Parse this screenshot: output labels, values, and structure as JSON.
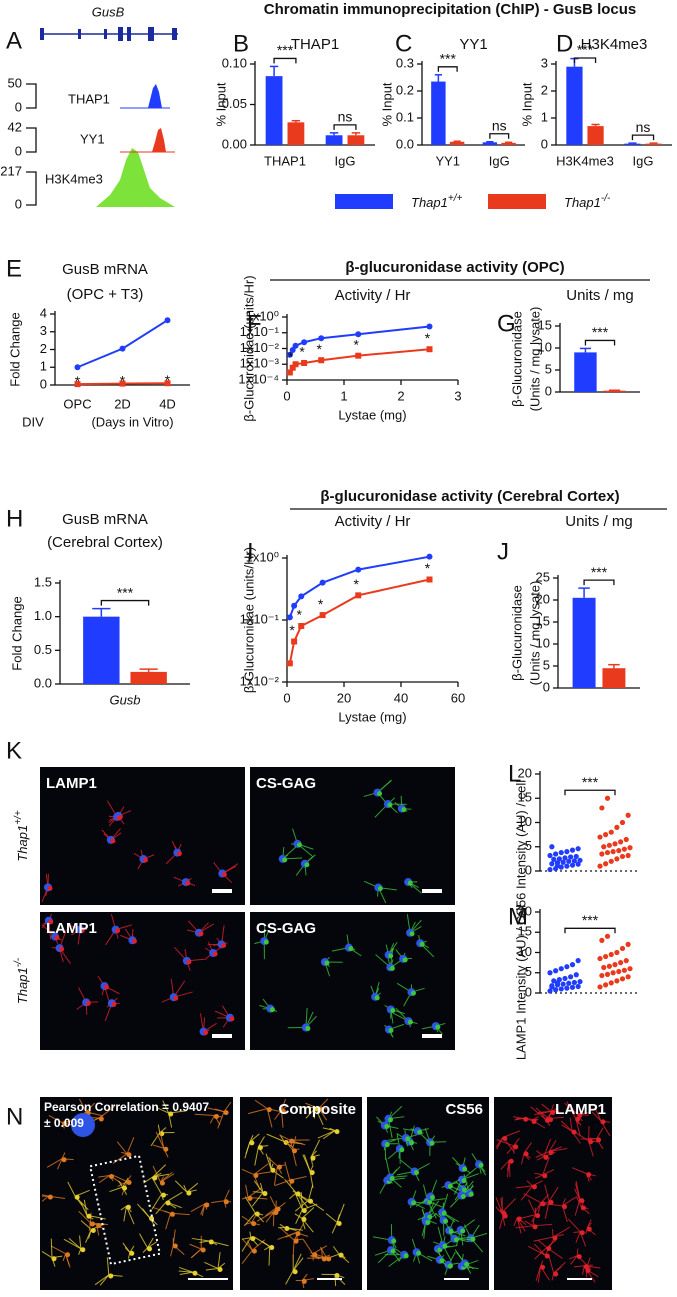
{
  "panel_letters": [
    "A",
    "B",
    "C",
    "D",
    "E",
    "F",
    "G",
    "H",
    "I",
    "J",
    "K",
    "L",
    "M",
    "N"
  ],
  "headers": [
    "Chromatin immunoprecipitation (ChIP) - GusB locus",
    "β-glucuronidase activity (OPC)",
    "β-glucuronidase activity (Cerebral Cortex)"
  ],
  "legend": [
    {
      "name": "Thap1",
      "superscript": "+/+",
      "color": "#1f3cff"
    },
    {
      "name": "Thap1",
      "superscript": "-/-",
      "color": "#ea3a1d"
    }
  ],
  "panel_a": {
    "gene": "GusB",
    "tracks": [
      {
        "name": "THAP1",
        "max": 50,
        "min": 0,
        "color": "#1f3cff"
      },
      {
        "name": "YY1",
        "max": 42,
        "min": 0,
        "color": "#ea3a1d"
      },
      {
        "name": "H3K4me3",
        "max": 217,
        "min": 0,
        "color": "#7de33a"
      }
    ]
  },
  "panel_k": {
    "columns": [
      "LAMP1",
      "CS-GAG"
    ],
    "rows": [
      {
        "name": "Thap1",
        "superscript": "+/+"
      },
      {
        "name": "Thap1",
        "superscript": "-/-"
      }
    ]
  },
  "panel_n": {
    "labels": [
      "Pearson Correlation = 0.9407",
      "± 0.009"
    ],
    "images": [
      "Composite",
      "CS56",
      "LAMP1"
    ]
  },
  "chart_data": [
    {
      "type": "bar",
      "title": "THAP1",
      "ylabel": "% Input",
      "categories": [
        "THAP1",
        "IgG"
      ],
      "series": [
        {
          "color": "#1f3cff",
          "values": [
            0.085,
            0.012
          ],
          "errors": [
            0.012,
            0.003
          ]
        },
        {
          "color": "#ea3a1d",
          "values": [
            0.028,
            0.012
          ],
          "errors": [
            0.002,
            0.003
          ]
        }
      ],
      "ylim": [
        0,
        0.1
      ],
      "yticks": [
        {
          "value": 0,
          "label": "0.00"
        },
        {
          "value": 0.05,
          "label": "0.05"
        },
        {
          "value": 0.1,
          "label": "0.10"
        }
      ],
      "annotations": [
        "***",
        "ns"
      ]
    },
    {
      "type": "bar",
      "title": "YY1",
      "ylabel": "% Input",
      "categories": [
        "YY1",
        "IgG"
      ],
      "series": [
        {
          "color": "#1f3cff",
          "values": [
            0.235,
            0.01
          ],
          "errors": [
            0.025,
            0.002
          ]
        },
        {
          "color": "#ea3a1d",
          "values": [
            0.012,
            0.008
          ],
          "errors": [
            0.002,
            0.002
          ]
        }
      ],
      "ylim": [
        0,
        0.3
      ],
      "yticks": [
        {
          "value": 0,
          "label": "0.0"
        },
        0.1,
        0.2,
        0.3
      ],
      "annotations": [
        "***",
        "ns"
      ]
    },
    {
      "type": "bar",
      "title": "H3K4me3",
      "ylabel": "% Input",
      "categories": [
        "H3K4me3",
        "IgG"
      ],
      "series": [
        {
          "color": "#1f3cff",
          "values": [
            2.9,
            0.05
          ],
          "errors": [
            0.3,
            0.02
          ]
        },
        {
          "color": "#ea3a1d",
          "values": [
            0.7,
            0.05
          ],
          "errors": [
            0.06,
            0.02
          ]
        }
      ],
      "ylim": [
        0,
        3
      ],
      "yticks": [
        0,
        1,
        2,
        3
      ],
      "annotations": [
        "***",
        "ns"
      ]
    },
    {
      "type": "line",
      "title": "GusB mRNA",
      "subtitle": "(OPC + T3)",
      "ylabel": "Fold Change",
      "categories": [
        "OPC",
        "2D",
        "4D"
      ],
      "xlabel": [
        "DIV",
        "(Days in Vitro)"
      ],
      "series": [
        {
          "color": "#1f3cff",
          "values": [
            1,
            2.05,
            3.65
          ]
        },
        {
          "color": "#ea3a1d",
          "values": [
            0.05,
            0.08,
            0.1
          ]
        }
      ],
      "ylim": [
        0,
        4
      ],
      "yticks": [
        0,
        1,
        2,
        3,
        4
      ],
      "annotations": [
        {
          "text": "*",
          "index": 0
        },
        {
          "text": "*",
          "index": 1
        },
        {
          "text": "*",
          "index": 2
        }
      ]
    },
    {
      "type": "line",
      "log": true,
      "title": "Activity / Hr",
      "ylabel": "β-Glucuronidae (units/Hr)",
      "xlabel": "Lystae (mg)",
      "x": [
        0.05,
        0.1,
        0.15,
        0.3,
        0.6,
        1.25,
        2.5
      ],
      "series": [
        {
          "color": "#1f3cff",
          "values": [
            0.004,
            0.008,
            0.015,
            0.025,
            0.045,
            0.08,
            0.25
          ]
        },
        {
          "color": "#ea3a1d",
          "values": [
            0.0003,
            0.0006,
            0.001,
            0.0012,
            0.0018,
            0.0035,
            0.009
          ]
        }
      ],
      "xlim": [
        0,
        3
      ],
      "xticks": [
        0,
        1,
        2,
        3
      ],
      "ylim": [
        0.0001,
        1
      ],
      "yticks": [
        {
          "value": 0.0001,
          "label": "1x10⁻⁴"
        },
        {
          "value": 0.001,
          "label": "1x10⁻³"
        },
        {
          "value": 0.01,
          "label": "1x10⁻²"
        },
        {
          "value": 0.1,
          "label": "1x10⁻¹"
        },
        {
          "value": 1,
          "label": "1x10⁰"
        }
      ],
      "annotations": [
        {
          "text": "*",
          "index": 1
        },
        {
          "text": "*",
          "index": 3
        },
        {
          "text": "*",
          "index": 4
        },
        {
          "text": "*",
          "index": 5
        },
        {
          "text": "*",
          "index": 6
        }
      ]
    },
    {
      "type": "bar",
      "title": "Units / mg",
      "ylabel": [
        "β-Glucuronidase",
        "(Units / mg lysate)"
      ],
      "categories": [
        null
      ],
      "series": [
        {
          "color": "#1f3cff",
          "values": [
            9
          ],
          "errors": [
            0.9
          ]
        },
        {
          "color": "#ea3a1d",
          "values": [
            0.3
          ],
          "errors": [
            0.1
          ]
        }
      ],
      "ylim": [
        0,
        15
      ],
      "yticks": [
        0,
        5,
        10,
        15
      ],
      "annotations": [
        "***"
      ]
    },
    {
      "type": "bar",
      "title": "GusB mRNA",
      "subtitle": "(Cerebral Cortex)",
      "ylabel": "Fold Change",
      "categories": [
        "Gusb"
      ],
      "series": [
        {
          "color": "#1f3cff",
          "values": [
            1
          ],
          "errors": [
            0.12
          ]
        },
        {
          "color": "#ea3a1d",
          "values": [
            0.18
          ],
          "errors": [
            0.04
          ]
        }
      ],
      "ylim": [
        0,
        1.5
      ],
      "yticks": [
        {
          "value": 0,
          "label": "0.0"
        },
        {
          "value": 0.5,
          "label": "0.5"
        },
        {
          "value": 1,
          "label": "1.0"
        },
        {
          "value": 1.5,
          "label": "1.5"
        }
      ],
      "annotations": [
        "***"
      ]
    },
    {
      "type": "line",
      "log": true,
      "title": "Activity / Hr",
      "ylabel": "β-Glucuronidae (units/Hr)",
      "xlabel": "Lystae (mg)",
      "x": [
        1,
        2.5,
        5,
        12.5,
        25,
        50
      ],
      "series": [
        {
          "color": "#1f3cff",
          "values": [
            0.11,
            0.17,
            0.24,
            0.4,
            0.65,
            1.05
          ]
        },
        {
          "color": "#ea3a1d",
          "values": [
            0.02,
            0.045,
            0.08,
            0.12,
            0.25,
            0.45
          ]
        }
      ],
      "xlim": [
        0,
        60
      ],
      "xticks": [
        0,
        20,
        40,
        60
      ],
      "ylim": [
        0.01,
        1
      ],
      "yticks": [
        {
          "value": 0.01,
          "label": "1x10⁻²"
        },
        {
          "value": 0.1,
          "label": "1x10⁻¹"
        },
        {
          "value": 1,
          "label": "1x10⁰"
        }
      ],
      "annotations": [
        {
          "text": "*",
          "index": 1
        },
        {
          "text": "*",
          "index": 2
        },
        {
          "text": "*",
          "index": 3
        },
        {
          "text": "*",
          "index": 4
        },
        {
          "text": "*",
          "index": 5
        }
      ]
    },
    {
      "type": "bar",
      "title": "Units / mg",
      "ylabel": [
        "β-Glucuronidase",
        "(Units / mg lysate)"
      ],
      "categories": [
        null
      ],
      "series": [
        {
          "color": "#1f3cff",
          "values": [
            20.5
          ],
          "errors": [
            2.2
          ]
        },
        {
          "color": "#ea3a1d",
          "values": [
            4.5
          ],
          "errors": [
            0.8
          ]
        }
      ],
      "ylim": [
        0,
        25
      ],
      "yticks": [
        0,
        5,
        10,
        15,
        20,
        25
      ],
      "annotations": [
        "***"
      ]
    },
    {
      "type": "strip",
      "ylabel": "CS56 Intensity (AU) / cell",
      "series": [
        {
          "color": "#1f3cff",
          "values": [
            0.3,
            0.5,
            0.8,
            1.0,
            1.2,
            1.4,
            1.5,
            1.7,
            1.8,
            2.0,
            2.1,
            2.2,
            2.4,
            2.5,
            2.7,
            2.9,
            3.0,
            3.2,
            3.5,
            3.8,
            4.0,
            4.3,
            4.6,
            5.0,
            1.1
          ]
        },
        {
          "color": "#ea3a1d",
          "values": [
            1.0,
            1.5,
            2.0,
            2.5,
            3.0,
            3.2,
            3.5,
            3.8,
            4.0,
            4.2,
            4.5,
            4.8,
            5.0,
            5.3,
            5.6,
            6.0,
            6.5,
            7.0,
            7.5,
            8.0,
            9.0,
            10.0,
            11.5,
            13.0,
            15.0
          ]
        }
      ],
      "ylim": [
        0,
        20
      ],
      "yticks": [
        0,
        5,
        10,
        15,
        20
      ],
      "annotations": [
        "***"
      ]
    },
    {
      "type": "strip",
      "ylabel": "LAMP1 Intensity (AU) / cell",
      "series": [
        {
          "color": "#1f3cff",
          "values": [
            0.5,
            0.8,
            1.0,
            1.2,
            1.4,
            1.6,
            1.8,
            2.0,
            2.2,
            2.4,
            2.6,
            2.8,
            3.0,
            3.3,
            3.6,
            4.0,
            4.5,
            5.0,
            5.5,
            6.0,
            6.5,
            7.0,
            8.0,
            1.5,
            2.5
          ]
        },
        {
          "color": "#ea3a1d",
          "values": [
            1.5,
            2.0,
            2.5,
            3.0,
            3.5,
            4.0,
            4.3,
            4.6,
            5.0,
            5.3,
            5.6,
            6.0,
            6.3,
            6.6,
            7.0,
            7.5,
            8.0,
            8.5,
            9.0,
            9.5,
            10.0,
            11.0,
            12.0,
            13.0,
            14.0
          ]
        }
      ],
      "ylim": [
        0,
        20
      ],
      "yticks": [
        0,
        5,
        10,
        15,
        20
      ],
      "annotations": [
        "***"
      ]
    }
  ]
}
